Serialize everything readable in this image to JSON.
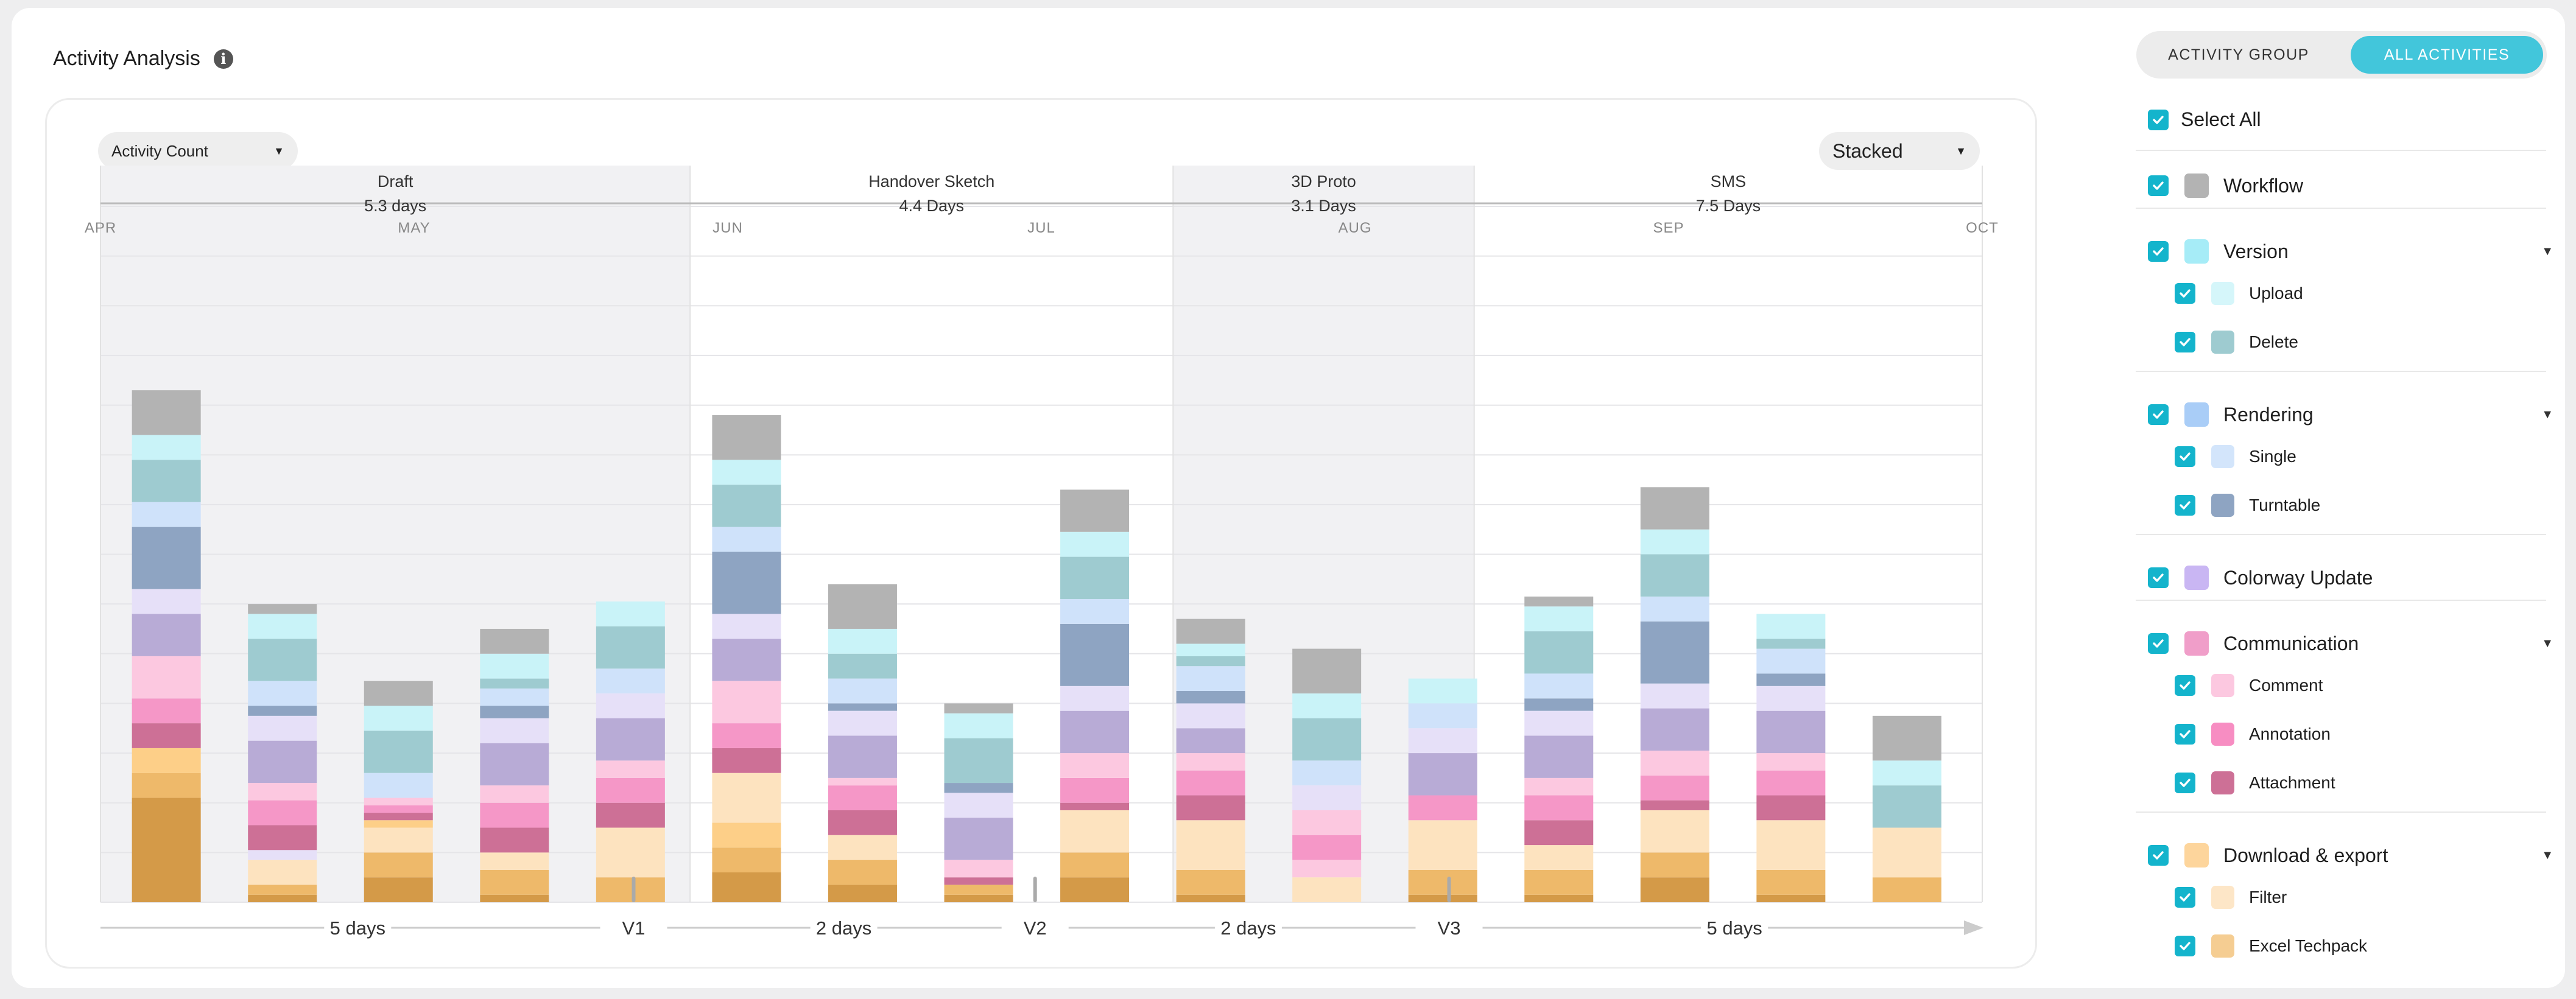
{
  "header": {
    "title": "Activity Analysis",
    "info_icon": "info-icon"
  },
  "controls": {
    "metric": "Activity Count",
    "mode": "Stacked"
  },
  "toggle": {
    "group": "ACTIVITY GROUP",
    "all": "ALL ACTIVITIES",
    "active": "all"
  },
  "colors": {
    "workflow": "#b3b3b3",
    "upload": "#c9f3f8",
    "delete": "#9ecbd0",
    "single": "#cfe2fa",
    "turntable": "#8ea4c2",
    "colorway_light": "#e6e0f8",
    "colorway": "#b8abd6",
    "comment": "#fcc8e0",
    "annotation": "#f597c7",
    "attachment": "#cd7096",
    "export_yellow": "#fdcf88",
    "filter": "#fde3bf",
    "excel": "#eeb96a",
    "export_dark": "#d49a48",
    "accent": "#14b4cc"
  },
  "panel": {
    "select_all": "Select All",
    "groups": [
      {
        "name": "workflow",
        "label": "Workflow",
        "color": "#b3b3b3",
        "children": []
      },
      {
        "name": "version",
        "label": "Version",
        "color": "#a6ecf7",
        "children": [
          {
            "name": "upload",
            "label": "Upload",
            "color": "#d5f6fa"
          },
          {
            "name": "delete",
            "label": "Delete",
            "color": "#9ecbd0"
          }
        ]
      },
      {
        "name": "rendering",
        "label": "Rendering",
        "color": "#a9cdf7",
        "children": [
          {
            "name": "single",
            "label": "Single",
            "color": "#d3e5fb"
          },
          {
            "name": "turntable",
            "label": "Turntable",
            "color": "#8ea4c2"
          }
        ]
      },
      {
        "name": "colorway-update",
        "label": "Colorway Update",
        "color": "#c9b6f3",
        "children": []
      },
      {
        "name": "communication",
        "label": "Communication",
        "color": "#f09ec9",
        "children": [
          {
            "name": "comment",
            "label": "Comment",
            "color": "#fcc8e0"
          },
          {
            "name": "annotation",
            "label": "Annotation",
            "color": "#f78dc2"
          },
          {
            "name": "attachment",
            "label": "Attachment",
            "color": "#cd7096"
          }
        ]
      },
      {
        "name": "download-export",
        "label": "Download & export",
        "color": "#fdd59c",
        "children": [
          {
            "name": "filter",
            "label": "Filter",
            "color": "#fde6c7"
          },
          {
            "name": "excel-techpack",
            "label": "Excel Techpack",
            "color": "#f5cd92"
          }
        ]
      }
    ]
  },
  "chart_data": {
    "type": "bar",
    "stacked": true,
    "x_ticks": [
      "APR",
      "MAY",
      "JUN",
      "JUL",
      "AUG",
      "SEP",
      "OCT"
    ],
    "phases": [
      {
        "label": "Draft",
        "duration": "5.3 days",
        "shaded": true,
        "start": 0,
        "end": 1.88
      },
      {
        "label": "Handover Sketch",
        "duration": "4.4 Days",
        "shaded": false,
        "start": 1.88,
        "end": 3.42
      },
      {
        "label": "3D Proto",
        "duration": "3.1 Days",
        "shaded": true,
        "start": 3.42,
        "end": 4.38
      },
      {
        "label": "SMS",
        "duration": "7.5 Days",
        "shaded": false,
        "start": 4.38,
        "end": 6
      }
    ],
    "gaps": [
      {
        "label": "5 days",
        "x": 0.82
      },
      {
        "label": "V1",
        "x": 1.7,
        "marker": true
      },
      {
        "label": "2 days",
        "x": 2.37
      },
      {
        "label": "V2",
        "x": 2.98,
        "marker": true
      },
      {
        "label": "2 days",
        "x": 3.66
      },
      {
        "label": "V3",
        "x": 4.3,
        "marker": true
      },
      {
        "label": "5 days",
        "x": 5.21
      }
    ],
    "ylim": [
      0,
      14
    ],
    "grid": true,
    "series_order": [
      "export_dark",
      "excel",
      "filter",
      "export_yellow",
      "attachment",
      "annotation",
      "comment",
      "colorway",
      "colorway_light",
      "turntable",
      "single",
      "delete",
      "upload",
      "workflow"
    ],
    "bars": [
      {
        "x": 0.21,
        "segments": [
          [
            "export_dark",
            2.1
          ],
          [
            "excel",
            0.5
          ],
          [
            "export_yellow",
            0.5
          ],
          [
            "attachment",
            0.5
          ],
          [
            "annotation",
            0.5
          ],
          [
            "comment",
            0.85
          ],
          [
            "colorway",
            0.85
          ],
          [
            "colorway_light",
            0.5
          ],
          [
            "turntable",
            1.25
          ],
          [
            "single",
            0.5
          ],
          [
            "delete",
            0.85
          ],
          [
            "upload",
            0.5
          ],
          [
            "workflow",
            0.9
          ]
        ]
      },
      {
        "x": 0.58,
        "segments": [
          [
            "export_dark",
            0.15
          ],
          [
            "excel",
            0.2
          ],
          [
            "filter",
            0.5
          ],
          [
            "colorway_light",
            0.2
          ],
          [
            "attachment",
            0.5
          ],
          [
            "annotation",
            0.5
          ],
          [
            "comment",
            0.35
          ],
          [
            "colorway",
            0.85
          ],
          [
            "colorway_light",
            0.5
          ],
          [
            "turntable",
            0.2
          ],
          [
            "single",
            0.5
          ],
          [
            "delete",
            0.85
          ],
          [
            "upload",
            0.5
          ],
          [
            "workflow",
            0.2
          ]
        ]
      },
      {
        "x": 0.95,
        "segments": [
          [
            "export_dark",
            0.5
          ],
          [
            "excel",
            0.5
          ],
          [
            "filter",
            0.5
          ],
          [
            "export_yellow",
            0.15
          ],
          [
            "attachment",
            0.15
          ],
          [
            "annotation",
            0.15
          ],
          [
            "comment",
            0.15
          ],
          [
            "single",
            0.5
          ],
          [
            "delete",
            0.85
          ],
          [
            "upload",
            0.5
          ],
          [
            "workflow",
            0.5
          ]
        ]
      },
      {
        "x": 1.32,
        "segments": [
          [
            "export_dark",
            0.15
          ],
          [
            "excel",
            0.5
          ],
          [
            "filter",
            0.35
          ],
          [
            "attachment",
            0.5
          ],
          [
            "annotation",
            0.5
          ],
          [
            "comment",
            0.35
          ],
          [
            "colorway",
            0.85
          ],
          [
            "colorway_light",
            0.5
          ],
          [
            "turntable",
            0.25
          ],
          [
            "single",
            0.35
          ],
          [
            "delete",
            0.2
          ],
          [
            "upload",
            0.5
          ],
          [
            "workflow",
            0.5
          ]
        ]
      },
      {
        "x": 1.69,
        "segments": [
          [
            "excel",
            0.5
          ],
          [
            "filter",
            1.0
          ],
          [
            "attachment",
            0.5
          ],
          [
            "annotation",
            0.5
          ],
          [
            "comment",
            0.35
          ],
          [
            "colorway",
            0.85
          ],
          [
            "colorway_light",
            0.5
          ],
          [
            "single",
            0.5
          ],
          [
            "delete",
            0.85
          ],
          [
            "upload",
            0.5
          ]
        ]
      },
      {
        "x": 2.06,
        "segments": [
          [
            "export_dark",
            0.6
          ],
          [
            "excel",
            0.5
          ],
          [
            "export_yellow",
            0.5
          ],
          [
            "filter",
            1.0
          ],
          [
            "attachment",
            0.5
          ],
          [
            "annotation",
            0.5
          ],
          [
            "comment",
            0.85
          ],
          [
            "colorway",
            0.85
          ],
          [
            "colorway_light",
            0.5
          ],
          [
            "turntable",
            1.25
          ],
          [
            "single",
            0.5
          ],
          [
            "delete",
            0.85
          ],
          [
            "upload",
            0.5
          ],
          [
            "workflow",
            0.9
          ]
        ]
      },
      {
        "x": 2.43,
        "segments": [
          [
            "export_dark",
            0.35
          ],
          [
            "excel",
            0.5
          ],
          [
            "filter",
            0.5
          ],
          [
            "attachment",
            0.5
          ],
          [
            "annotation",
            0.5
          ],
          [
            "comment",
            0.15
          ],
          [
            "colorway",
            0.85
          ],
          [
            "colorway_light",
            0.5
          ],
          [
            "turntable",
            0.15
          ],
          [
            "single",
            0.5
          ],
          [
            "delete",
            0.5
          ],
          [
            "upload",
            0.5
          ],
          [
            "workflow",
            0.9
          ]
        ]
      },
      {
        "x": 2.8,
        "segments": [
          [
            "export_dark",
            0.15
          ],
          [
            "excel",
            0.2
          ],
          [
            "attachment",
            0.15
          ],
          [
            "comment",
            0.35
          ],
          [
            "colorway",
            0.85
          ],
          [
            "colorway_light",
            0.5
          ],
          [
            "turntable",
            0.2
          ],
          [
            "delete",
            0.9
          ],
          [
            "upload",
            0.5
          ],
          [
            "workflow",
            0.2
          ]
        ]
      },
      {
        "x": 3.17,
        "segments": [
          [
            "export_dark",
            0.5
          ],
          [
            "excel",
            0.5
          ],
          [
            "filter",
            0.85
          ],
          [
            "attachment",
            0.15
          ],
          [
            "annotation",
            0.5
          ],
          [
            "comment",
            0.5
          ],
          [
            "colorway",
            0.85
          ],
          [
            "colorway_light",
            0.5
          ],
          [
            "turntable",
            1.25
          ],
          [
            "single",
            0.5
          ],
          [
            "delete",
            0.85
          ],
          [
            "upload",
            0.5
          ],
          [
            "workflow",
            0.85
          ]
        ]
      },
      {
        "x": 3.54,
        "segments": [
          [
            "export_dark",
            0.15
          ],
          [
            "excel",
            0.5
          ],
          [
            "filter",
            1.0
          ],
          [
            "attachment",
            0.5
          ],
          [
            "annotation",
            0.5
          ],
          [
            "comment",
            0.35
          ],
          [
            "colorway",
            0.5
          ],
          [
            "colorway_light",
            0.5
          ],
          [
            "turntable",
            0.25
          ],
          [
            "single",
            0.5
          ],
          [
            "delete",
            0.2
          ],
          [
            "upload",
            0.25
          ],
          [
            "workflow",
            0.5
          ]
        ]
      },
      {
        "x": 3.91,
        "segments": [
          [
            "filter",
            0.5
          ],
          [
            "comment",
            0.35
          ],
          [
            "annotation",
            0.5
          ],
          [
            "comment",
            0.5
          ],
          [
            "colorway_light",
            0.5
          ],
          [
            "single",
            0.5
          ],
          [
            "delete",
            0.85
          ],
          [
            "upload",
            0.5
          ],
          [
            "workflow",
            0.9
          ]
        ]
      },
      {
        "x": 4.28,
        "segments": [
          [
            "export_dark",
            0.15
          ],
          [
            "excel",
            0.5
          ],
          [
            "filter",
            1.0
          ],
          [
            "annotation",
            0.5
          ],
          [
            "colorway",
            0.85
          ],
          [
            "colorway_light",
            0.5
          ],
          [
            "single",
            0.5
          ],
          [
            "upload",
            0.5
          ]
        ]
      },
      {
        "x": 4.65,
        "segments": [
          [
            "export_dark",
            0.15
          ],
          [
            "excel",
            0.5
          ],
          [
            "filter",
            0.5
          ],
          [
            "attachment",
            0.5
          ],
          [
            "annotation",
            0.5
          ],
          [
            "comment",
            0.35
          ],
          [
            "colorway",
            0.85
          ],
          [
            "colorway_light",
            0.5
          ],
          [
            "turntable",
            0.25
          ],
          [
            "single",
            0.5
          ],
          [
            "delete",
            0.85
          ],
          [
            "upload",
            0.5
          ],
          [
            "workflow",
            0.2
          ]
        ]
      },
      {
        "x": 5.02,
        "segments": [
          [
            "export_dark",
            0.5
          ],
          [
            "excel",
            0.5
          ],
          [
            "filter",
            0.85
          ],
          [
            "attachment",
            0.2
          ],
          [
            "annotation",
            0.5
          ],
          [
            "comment",
            0.5
          ],
          [
            "colorway",
            0.85
          ],
          [
            "colorway_light",
            0.5
          ],
          [
            "turntable",
            1.25
          ],
          [
            "single",
            0.5
          ],
          [
            "delete",
            0.85
          ],
          [
            "upload",
            0.5
          ],
          [
            "workflow",
            0.85
          ]
        ]
      },
      {
        "x": 5.39,
        "segments": [
          [
            "export_dark",
            0.15
          ],
          [
            "excel",
            0.5
          ],
          [
            "filter",
            1.0
          ],
          [
            "attachment",
            0.5
          ],
          [
            "annotation",
            0.5
          ],
          [
            "comment",
            0.35
          ],
          [
            "colorway",
            0.85
          ],
          [
            "colorway_light",
            0.5
          ],
          [
            "turntable",
            0.25
          ],
          [
            "single",
            0.5
          ],
          [
            "delete",
            0.2
          ],
          [
            "upload",
            0.5
          ]
        ]
      },
      {
        "x": 5.76,
        "segments": [
          [
            "excel",
            0.5
          ],
          [
            "filter",
            1.0
          ],
          [
            "delete",
            0.85
          ],
          [
            "upload",
            0.5
          ],
          [
            "workflow",
            0.9
          ]
        ]
      }
    ]
  }
}
